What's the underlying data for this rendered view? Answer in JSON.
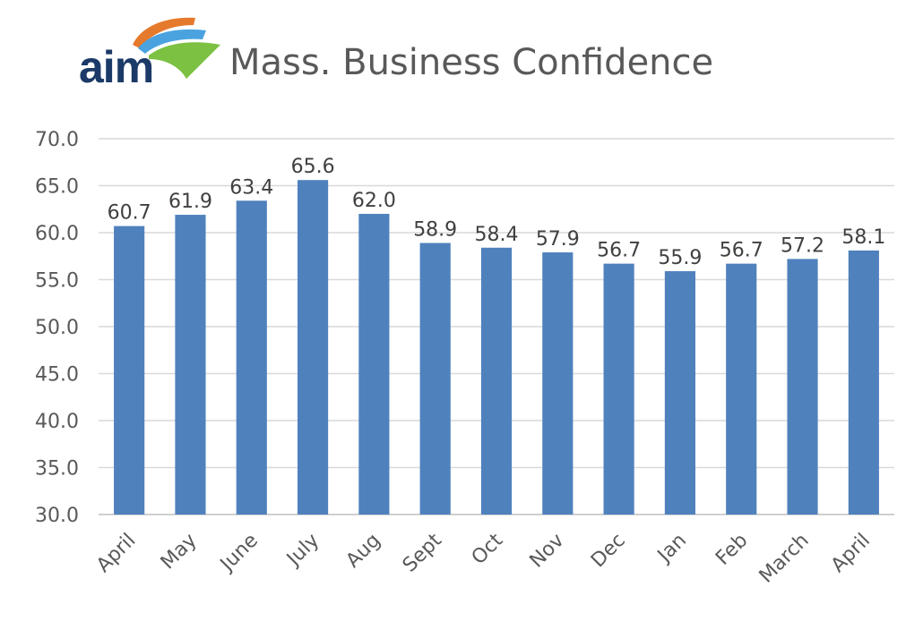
{
  "header": {
    "logo_text": "aim",
    "title": "Mass. Business Confidence"
  },
  "colors": {
    "bar": "#4f81bd",
    "logo_navy": "#1b3a67",
    "logo_orange": "#e57a2c",
    "logo_blue": "#4aa3df",
    "logo_green": "#7cc142",
    "grid": "#d9d9d9",
    "text": "#595959"
  },
  "chart_data": {
    "type": "bar",
    "title": "Mass. Business Confidence",
    "categories": [
      "April",
      "May",
      "June",
      "July",
      "Aug",
      "Sept",
      "Oct",
      "Nov",
      "Dec",
      "Jan",
      "Feb",
      "March",
      "April"
    ],
    "values": [
      60.7,
      61.9,
      63.4,
      65.6,
      62.0,
      58.9,
      58.4,
      57.9,
      56.7,
      55.9,
      56.7,
      57.2,
      58.1
    ],
    "value_labels": [
      "60.7",
      "61.9",
      "63.4",
      "65.6",
      "62.0",
      "58.9",
      "58.4",
      "57.9",
      "56.7",
      "55.9",
      "56.7",
      "57.2",
      "58.1"
    ],
    "ylim": [
      30,
      70
    ],
    "yticks": [
      "30.0",
      "35.0",
      "40.0",
      "45.0",
      "50.0",
      "55.0",
      "60.0",
      "65.0",
      "70.0"
    ],
    "xlabel": "",
    "ylabel": "",
    "grid": true,
    "legend": "none"
  }
}
